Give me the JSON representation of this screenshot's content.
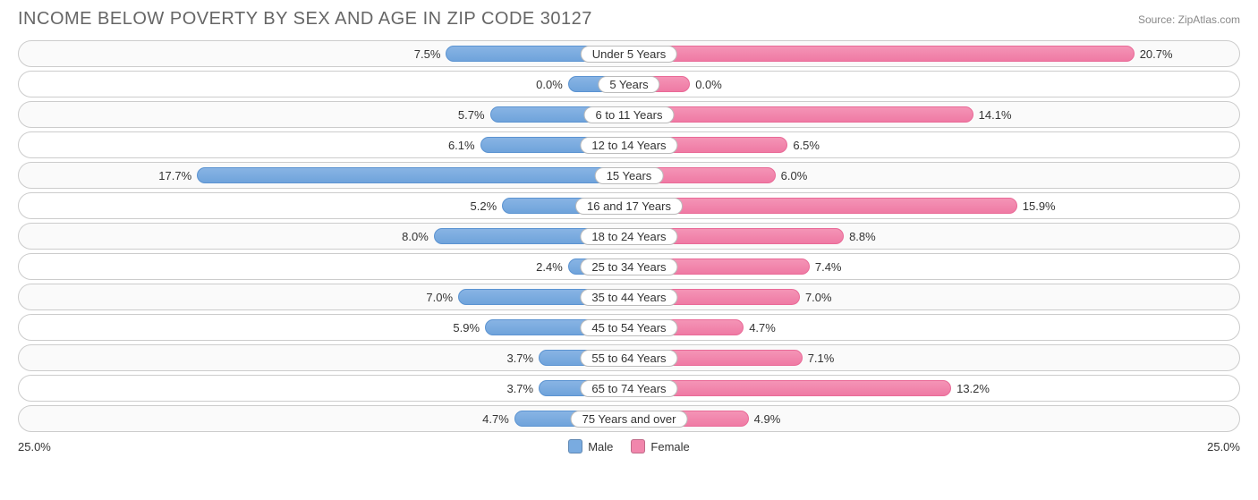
{
  "title": "INCOME BELOW POVERTY BY SEX AND AGE IN ZIP CODE 30127",
  "source_label": "Source: ",
  "source_name": "ZipAtlas.com",
  "axis_max_label": "25.0%",
  "legend": {
    "male": "Male",
    "female": "Female"
  },
  "chart": {
    "type": "diverging-bar",
    "max": 25.0,
    "male_color": "#79abe0",
    "female_color": "#f186ac",
    "border_color": "#cccccc",
    "background_color": "#ffffff",
    "alt_row_color": "#fafafa",
    "text_color": "#333333",
    "title_color": "#666666",
    "categories": [
      {
        "label": "Under 5 Years",
        "male": 7.5,
        "female": 20.7
      },
      {
        "label": "5 Years",
        "male": 0.0,
        "female": 0.0
      },
      {
        "label": "6 to 11 Years",
        "male": 5.7,
        "female": 14.1
      },
      {
        "label": "12 to 14 Years",
        "male": 6.1,
        "female": 6.5
      },
      {
        "label": "15 Years",
        "male": 17.7,
        "female": 6.0
      },
      {
        "label": "16 and 17 Years",
        "male": 5.2,
        "female": 15.9
      },
      {
        "label": "18 to 24 Years",
        "male": 8.0,
        "female": 8.8
      },
      {
        "label": "25 to 34 Years",
        "male": 2.4,
        "female": 7.4
      },
      {
        "label": "35 to 44 Years",
        "male": 7.0,
        "female": 7.0
      },
      {
        "label": "45 to 54 Years",
        "male": 5.9,
        "female": 4.7
      },
      {
        "label": "55 to 64 Years",
        "male": 3.7,
        "female": 7.1
      },
      {
        "label": "65 to 74 Years",
        "male": 3.7,
        "female": 13.2
      },
      {
        "label": "75 Years and over",
        "male": 4.7,
        "female": 4.9
      }
    ]
  }
}
